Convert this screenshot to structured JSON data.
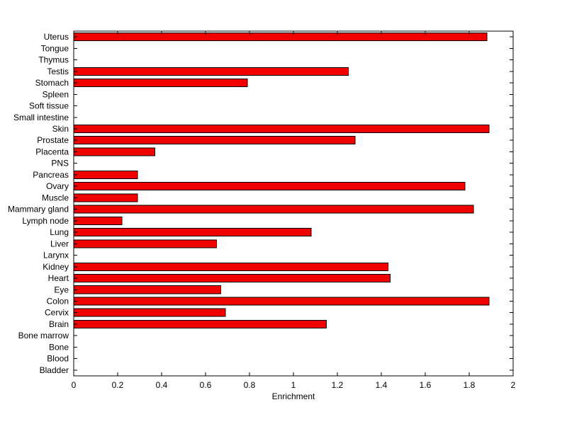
{
  "figure": {
    "background": "#ffffff"
  },
  "chart_data": {
    "type": "bar",
    "orientation": "horizontal",
    "title": "",
    "xlabel": "Enrichment",
    "ylabel": "",
    "xlim": [
      0,
      2
    ],
    "xticks": [
      0,
      0.2,
      0.4,
      0.6,
      0.8,
      1,
      1.2,
      1.4,
      1.6,
      1.8,
      2
    ],
    "grid": false,
    "legend": "none",
    "bar_color": "#f20000",
    "bar_edge_color": "#000000",
    "axis_color": "#000000",
    "categories": [
      "Uterus",
      "Tongue",
      "Thymus",
      "Testis",
      "Stomach",
      "Spleen",
      "Soft tissue",
      "Small intestine",
      "Skin",
      "Prostate",
      "Placenta",
      "PNS",
      "Pancreas",
      "Ovary",
      "Muscle",
      "Mammary gland",
      "Lymph node",
      "Lung",
      "Liver",
      "Larynx",
      "Kidney",
      "Heart",
      "Eye",
      "Colon",
      "Cervix",
      "Brain",
      "Bone marrow",
      "Bone",
      "Blood",
      "Bladder"
    ],
    "values": [
      1.88,
      0,
      0,
      1.25,
      0.79,
      0,
      0,
      0,
      1.89,
      1.28,
      0.37,
      0,
      0.29,
      1.78,
      0.29,
      1.82,
      0.22,
      1.08,
      0.65,
      0,
      1.43,
      1.44,
      0.67,
      1.89,
      0.69,
      1.15,
      0,
      0,
      0,
      0
    ]
  }
}
